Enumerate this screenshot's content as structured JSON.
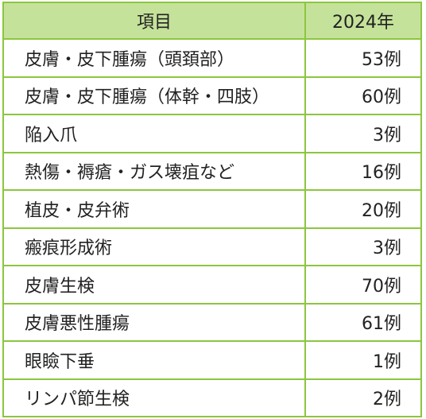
{
  "table": {
    "headers": {
      "item": "項目",
      "count": "2024年"
    },
    "rows": [
      {
        "item": "皮膚・皮下腫瘍（頭頚部）",
        "count": "53例"
      },
      {
        "item": "皮膚・皮下腫瘍（体幹・四肢）",
        "count": "60例"
      },
      {
        "item": "陥入爪",
        "count": "3例"
      },
      {
        "item": "熱傷・褥瘡・ガス壊疽など",
        "count": "16例"
      },
      {
        "item": "植皮・皮弁術",
        "count": "20例"
      },
      {
        "item": "瘢痕形成術",
        "count": "3例"
      },
      {
        "item": "皮膚生検",
        "count": "70例"
      },
      {
        "item": "皮膚悪性腫瘍",
        "count": "61例"
      },
      {
        "item": "眼瞼下垂",
        "count": "1例"
      },
      {
        "item": "リンパ節生検",
        "count": "2例"
      }
    ],
    "colors": {
      "border": "#8cc63f",
      "header_bg": "#c5e29a"
    }
  }
}
